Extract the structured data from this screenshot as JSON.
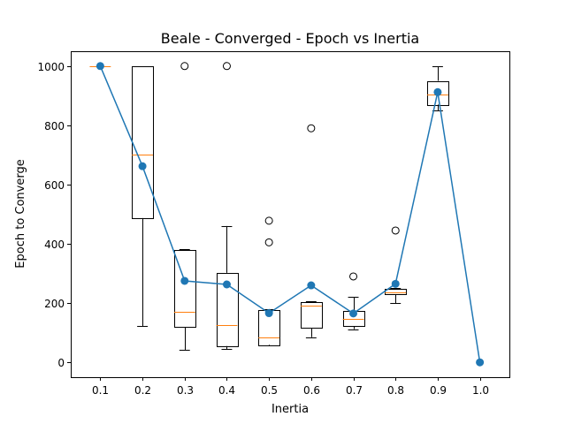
{
  "chart_data": {
    "type": "box",
    "title": "Beale - Converged - Epoch vs Inertia",
    "xlabel": "Inertia",
    "ylabel": "Epoch to Converge",
    "ylim": [
      -50,
      1050
    ],
    "yticks": [
      0,
      200,
      400,
      600,
      800,
      1000
    ],
    "categories": [
      "0.1",
      "0.2",
      "0.3",
      "0.4",
      "0.5",
      "0.6",
      "0.7",
      "0.8",
      "0.9",
      "1.0"
    ],
    "grid": false,
    "legend": "none",
    "boxes": [
      {
        "x": "0.1",
        "whislo": 1000,
        "q1": 1000,
        "med": 1000,
        "q3": 1000,
        "whishi": 1000,
        "fliers": []
      },
      {
        "x": "0.2",
        "whislo": 122,
        "q1": 487,
        "med": 700,
        "q3": 1000,
        "whishi": 1000,
        "fliers": []
      },
      {
        "x": "0.3",
        "whislo": 42,
        "q1": 120,
        "med": 170,
        "q3": 380,
        "whishi": 382,
        "fliers": [
          1000
        ]
      },
      {
        "x": "0.4",
        "whislo": 45,
        "q1": 55,
        "med": 125,
        "q3": 302,
        "whishi": 460,
        "fliers": [
          1000
        ]
      },
      {
        "x": "0.5",
        "whislo": 58,
        "q1": 60,
        "med": 85,
        "q3": 178,
        "whishi": 180,
        "fliers": [
          405,
          478
        ]
      },
      {
        "x": "0.6",
        "whislo": 85,
        "q1": 117,
        "med": 192,
        "q3": 203,
        "whishi": 205,
        "fliers": [
          790
        ]
      },
      {
        "x": "0.7",
        "whislo": 112,
        "q1": 123,
        "med": 147,
        "q3": 175,
        "whishi": 220,
        "fliers": [
          290
        ]
      },
      {
        "x": "0.8",
        "whislo": 200,
        "q1": 228,
        "med": 235,
        "q3": 247,
        "whishi": 250,
        "fliers": [
          445
        ]
      },
      {
        "x": "0.9",
        "whislo": 850,
        "q1": 870,
        "med": 905,
        "q3": 950,
        "whishi": 998,
        "fliers": []
      },
      {
        "x": "1.0",
        "whislo": null,
        "q1": null,
        "med": null,
        "q3": null,
        "whishi": null,
        "fliers": []
      }
    ],
    "mean_line": {
      "x": [
        "0.1",
        "0.2",
        "0.3",
        "0.4",
        "0.5",
        "0.6",
        "0.7",
        "0.8",
        "0.9",
        "1.0"
      ],
      "y": [
        1000,
        662,
        275,
        263,
        166,
        260,
        165,
        265,
        912,
        0
      ]
    },
    "colors": {
      "box": "#000000",
      "median": "#ff7f0e",
      "line": "#1f77b4",
      "flier": "#000000"
    }
  }
}
